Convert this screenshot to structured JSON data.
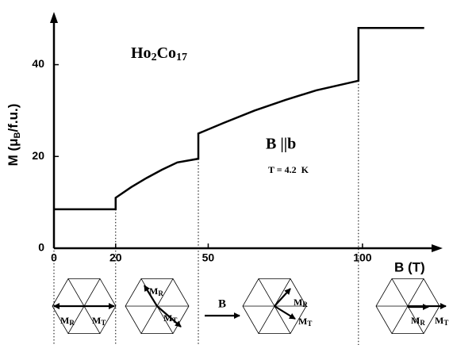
{
  "chart_data": {
    "type": "line",
    "y_label": [
      "M (μ",
      "B",
      "/f.u.)"
    ],
    "x_label": "B (T)",
    "formula": [
      "Ho",
      "2",
      "Co",
      "17"
    ],
    "field_direction": "B ||b",
    "temperature": "T = 4.2  K",
    "x": [
      0,
      20,
      20,
      25,
      30,
      35,
      40,
      46.8,
      46.8,
      55,
      65,
      75,
      85,
      98.7,
      98.7,
      120
    ],
    "values": [
      8.5,
      8.5,
      11,
      13.3,
      15.3,
      17.1,
      18.7,
      19.5,
      25,
      27.3,
      30,
      32.3,
      34.4,
      36.5,
      48,
      48
    ],
    "color": "#000000",
    "xlim": [
      0,
      126
    ],
    "ylim": [
      0,
      51.5
    ],
    "xticks": [
      0,
      20,
      50,
      100
    ],
    "yticks": [
      0,
      20,
      40
    ],
    "diagram_labels": {
      "rotated_moment": [
        "M",
        "R"
      ],
      "total_moment": [
        "M",
        "T"
      ],
      "field_arrow": "B"
    }
  }
}
